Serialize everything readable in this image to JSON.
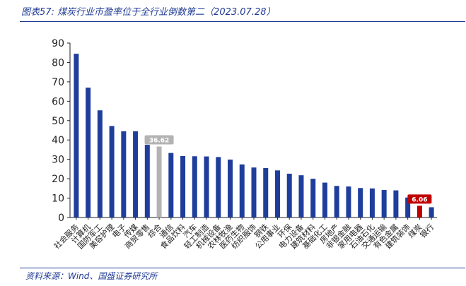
{
  "title": "图表57:  煤炭行业市盈率位于全行业倒数第二（2023.07.28）",
  "source": "资料来源：Wind、国盛证券研究所",
  "colors": {
    "bar": "#1f3e9c",
    "composite": "#b3b3b3",
    "highlight": "#c00000",
    "rule": "#1f3a93"
  },
  "chart_data": {
    "type": "bar",
    "title": "",
    "xlabel": "",
    "ylabel": "",
    "ylim": [
      0,
      90
    ],
    "yticks": [
      0,
      10,
      20,
      30,
      40,
      50,
      60,
      70,
      80,
      90
    ],
    "grid": false,
    "categories": [
      "社会服务",
      "计算机",
      "国防军工",
      "美容护理",
      "电子",
      "传媒",
      "商贸零售",
      "综合",
      "通信",
      "食品饮料",
      "汽车",
      "轻工制造",
      "机械设备",
      "农林牧渔",
      "医药生物",
      "纺织服饰",
      "钢铁",
      "公用事业",
      "环保",
      "电力设备",
      "建筑材料",
      "基础化工",
      "房地产",
      "非银金融",
      "家用电器",
      "石油石化",
      "交通运输",
      "有色金属",
      "建筑装饰",
      "煤炭",
      "银行"
    ],
    "values": [
      84.5,
      67,
      55.3,
      47.2,
      44.5,
      44.5,
      37.5,
      36.62,
      33.3,
      31.7,
      31.6,
      31.5,
      31.2,
      29.9,
      27.4,
      25.8,
      25.5,
      24.3,
      22.6,
      21.8,
      20.0,
      18.0,
      16.3,
      16.0,
      15.2,
      15.0,
      14.2,
      14.0,
      10.3,
      6.06,
      5.3
    ],
    "labels": [
      {
        "category": "综合",
        "text": "36.62"
      },
      {
        "category": "煤炭",
        "text": "6.06"
      }
    ]
  }
}
